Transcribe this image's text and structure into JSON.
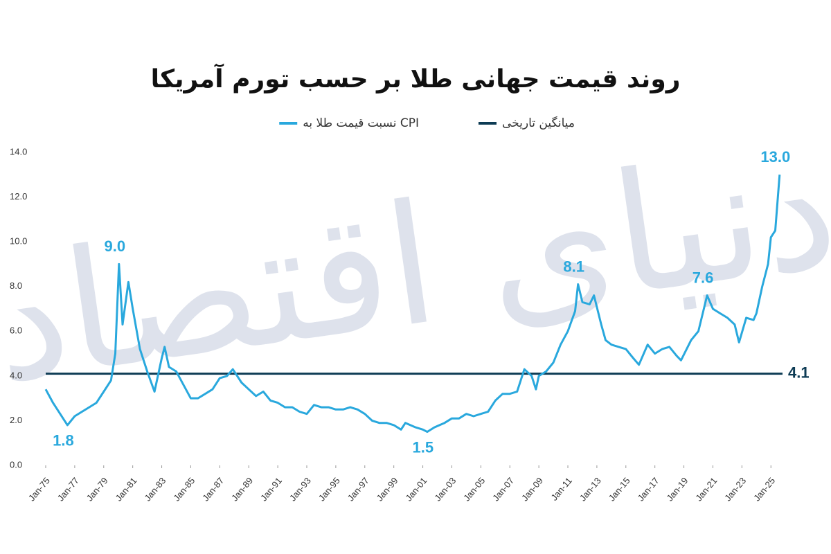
{
  "chart_data": {
    "type": "line",
    "title": "روند قیمت جهانی طلا بر حسب تورم آمریکا",
    "watermark": "دنیای اقتصاد",
    "series": [
      {
        "name": "نسبت قیمت طلا به CPI",
        "color": "#29a8dd",
        "x": [
          1975.0,
          1975.5,
          1976.0,
          1976.5,
          1977.0,
          1977.5,
          1978.0,
          1978.5,
          1979.0,
          1979.5,
          1979.8,
          1980.05,
          1980.3,
          1980.7,
          1981.0,
          1981.5,
          1982.0,
          1982.5,
          1983.0,
          1983.2,
          1983.5,
          1984.0,
          1984.5,
          1985.0,
          1985.5,
          1986.0,
          1986.5,
          1987.0,
          1987.5,
          1987.9,
          1988.5,
          1989.0,
          1989.5,
          1990.0,
          1990.5,
          1991.0,
          1991.5,
          1992.0,
          1992.5,
          1993.0,
          1993.5,
          1994.0,
          1994.5,
          1995.0,
          1995.5,
          1996.0,
          1996.5,
          1997.0,
          1997.5,
          1998.0,
          1998.5,
          1999.0,
          1999.5,
          1999.8,
          2000.5,
          2001.0,
          2001.3,
          2001.8,
          2002.5,
          2003.0,
          2003.5,
          2004.0,
          2004.5,
          2005.0,
          2005.5,
          2006.0,
          2006.5,
          2007.0,
          2007.5,
          2008.0,
          2008.5,
          2008.8,
          2009.0,
          2009.5,
          2010.0,
          2010.5,
          2011.0,
          2011.5,
          2011.7,
          2012.0,
          2012.5,
          2012.8,
          2013.3,
          2013.6,
          2014.0,
          2014.5,
          2015.0,
          2015.5,
          2015.9,
          2016.5,
          2017.0,
          2017.5,
          2018.0,
          2018.5,
          2018.8,
          2019.5,
          2020.0,
          2020.6,
          2021.0,
          2021.5,
          2022.0,
          2022.5,
          2022.8,
          2023.3,
          2023.8,
          2024.0,
          2024.4,
          2024.8,
          2025.0,
          2025.3,
          2025.6
        ],
        "values": [
          3.4,
          2.8,
          2.3,
          1.8,
          2.2,
          2.4,
          2.6,
          2.8,
          3.3,
          3.8,
          5.0,
          9.0,
          6.3,
          8.2,
          7.0,
          5.2,
          4.2,
          3.3,
          4.8,
          5.3,
          4.4,
          4.2,
          3.6,
          3.0,
          3.0,
          3.2,
          3.4,
          3.9,
          4.0,
          4.3,
          3.7,
          3.4,
          3.1,
          3.3,
          2.9,
          2.8,
          2.6,
          2.6,
          2.4,
          2.3,
          2.7,
          2.6,
          2.6,
          2.5,
          2.5,
          2.6,
          2.5,
          2.3,
          2.0,
          1.9,
          1.9,
          1.8,
          1.6,
          1.9,
          1.7,
          1.6,
          1.5,
          1.7,
          1.9,
          2.1,
          2.1,
          2.3,
          2.2,
          2.3,
          2.4,
          2.9,
          3.2,
          3.2,
          3.3,
          4.3,
          4.0,
          3.4,
          4.0,
          4.2,
          4.6,
          5.4,
          6.0,
          6.9,
          8.1,
          7.3,
          7.2,
          7.6,
          6.3,
          5.6,
          5.4,
          5.3,
          5.2,
          4.8,
          4.5,
          5.4,
          5.0,
          5.2,
          5.3,
          4.9,
          4.7,
          5.6,
          6.0,
          7.6,
          7.0,
          6.8,
          6.6,
          6.3,
          5.5,
          6.6,
          6.5,
          6.8,
          8.0,
          9.0,
          10.2,
          10.5,
          13.0
        ]
      }
    ],
    "reference_line": {
      "name": "میانگین تاریخی",
      "value": 4.1,
      "label": "4.1",
      "color": "#0d3b54"
    },
    "annotations": [
      {
        "label": "9.0",
        "value": 9.0,
        "x": 1980.05,
        "position": "above"
      },
      {
        "label": "1.8",
        "value": 1.8,
        "x": 1976.5,
        "position": "below"
      },
      {
        "label": "1.5",
        "value": 1.5,
        "x": 2001.3,
        "position": "below"
      },
      {
        "label": "8.1",
        "value": 8.1,
        "x": 2011.7,
        "position": "above"
      },
      {
        "label": "7.6",
        "value": 7.6,
        "x": 2020.6,
        "position": "above"
      },
      {
        "label": "13.0",
        "value": 13.0,
        "x": 2025.6,
        "position": "above"
      }
    ],
    "xlim": [
      1975,
      2025.8
    ],
    "xticks": [
      {
        "value": 1975,
        "label": "Jan-75"
      },
      {
        "value": 1977,
        "label": "Jan-77"
      },
      {
        "value": 1979,
        "label": "Jan-79"
      },
      {
        "value": 1981,
        "label": "Jan-81"
      },
      {
        "value": 1983,
        "label": "Jan-83"
      },
      {
        "value": 1985,
        "label": "Jan-85"
      },
      {
        "value": 1987,
        "label": "Jan-87"
      },
      {
        "value": 1989,
        "label": "Jan-89"
      },
      {
        "value": 1991,
        "label": "Jan-91"
      },
      {
        "value": 1993,
        "label": "Jan-93"
      },
      {
        "value": 1995,
        "label": "Jan-95"
      },
      {
        "value": 1997,
        "label": "Jan-97"
      },
      {
        "value": 1999,
        "label": "Jan-99"
      },
      {
        "value": 2001,
        "label": "Jan-01"
      },
      {
        "value": 2003,
        "label": "Jan-03"
      },
      {
        "value": 2005,
        "label": "Jan-05"
      },
      {
        "value": 2007,
        "label": "Jan-07"
      },
      {
        "value": 2009,
        "label": "Jan-09"
      },
      {
        "value": 2011,
        "label": "Jan-11"
      },
      {
        "value": 2013,
        "label": "Jan-13"
      },
      {
        "value": 2015,
        "label": "Jan-15"
      },
      {
        "value": 2017,
        "label": "Jan-17"
      },
      {
        "value": 2019,
        "label": "Jan-19"
      },
      {
        "value": 2021,
        "label": "Jan-21"
      },
      {
        "value": 2023,
        "label": "Jan-23"
      },
      {
        "value": 2025,
        "label": "Jan-25"
      }
    ],
    "ylim": [
      0,
      14
    ],
    "yticks": [
      {
        "value": 0,
        "label": "0.0"
      },
      {
        "value": 2,
        "label": "2.0"
      },
      {
        "value": 4,
        "label": "4.0"
      },
      {
        "value": 6,
        "label": "6.0"
      },
      {
        "value": 8,
        "label": "8.0"
      },
      {
        "value": 10,
        "label": "10.0"
      },
      {
        "value": 12,
        "label": "12.0"
      },
      {
        "value": 14,
        "label": "14.0"
      }
    ],
    "grid": false
  }
}
